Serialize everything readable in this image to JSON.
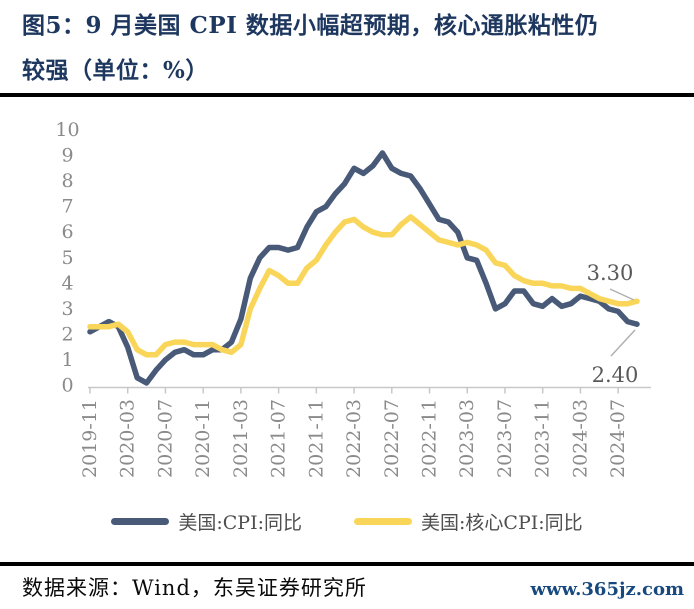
{
  "title": {
    "line1": "图5：9 月美国 CPI 数据小幅超预期，核心通胀粘性仍",
    "line2": "较强（单位：%）"
  },
  "footer": {
    "source": "数据来源：Wind，东吴证券研究所",
    "site": "www.365jz.com"
  },
  "colors": {
    "title_navy": "#1E375F",
    "cpi_line": "#485A78",
    "core_cpi_line": "#F9D65A",
    "axis_gray": "#C8C8C8",
    "label_gray": "#8A8A8A",
    "site_blue": "#17497F"
  },
  "chart_data": {
    "type": "line",
    "title": "图5：9 月美国 CPI 数据小幅超预期，核心通胀粘性仍较强（单位：%）",
    "xlabel": "",
    "ylabel": "",
    "ylim": [
      0,
      10
    ],
    "yticks": [
      0,
      1,
      2,
      3,
      4,
      5,
      6,
      7,
      8,
      9,
      10
    ],
    "xtick_every": 4,
    "grid": false,
    "legend_position": "bottom",
    "x": [
      "2019-11",
      "2019-12",
      "2020-01",
      "2020-02",
      "2020-03",
      "2020-04",
      "2020-05",
      "2020-06",
      "2020-07",
      "2020-08",
      "2020-09",
      "2020-10",
      "2020-11",
      "2020-12",
      "2021-01",
      "2021-02",
      "2021-03",
      "2021-04",
      "2021-05",
      "2021-06",
      "2021-07",
      "2021-08",
      "2021-09",
      "2021-10",
      "2021-11",
      "2021-12",
      "2022-01",
      "2022-02",
      "2022-03",
      "2022-04",
      "2022-05",
      "2022-06",
      "2022-07",
      "2022-08",
      "2022-09",
      "2022-10",
      "2022-11",
      "2022-12",
      "2023-01",
      "2023-02",
      "2023-03",
      "2023-04",
      "2023-05",
      "2023-06",
      "2023-07",
      "2023-08",
      "2023-09",
      "2023-10",
      "2023-11",
      "2023-12",
      "2024-01",
      "2024-02",
      "2024-03",
      "2024-04",
      "2024-05",
      "2024-06",
      "2024-07",
      "2024-08",
      "2024-09"
    ],
    "series": [
      {
        "key": "cpi",
        "name": "美国:CPI:同比",
        "color": "#485A78",
        "end_label": "2.40",
        "values": [
          2.1,
          2.3,
          2.5,
          2.3,
          1.5,
          0.3,
          0.1,
          0.6,
          1.0,
          1.3,
          1.4,
          1.2,
          1.2,
          1.4,
          1.4,
          1.7,
          2.6,
          4.2,
          5.0,
          5.4,
          5.4,
          5.3,
          5.4,
          6.2,
          6.8,
          7.0,
          7.5,
          7.9,
          8.5,
          8.3,
          8.6,
          9.1,
          8.5,
          8.3,
          8.2,
          7.7,
          7.1,
          6.5,
          6.4,
          6.0,
          5.0,
          4.9,
          4.0,
          3.0,
          3.2,
          3.7,
          3.7,
          3.2,
          3.1,
          3.4,
          3.1,
          3.2,
          3.5,
          3.4,
          3.3,
          3.0,
          2.9,
          2.5,
          2.4
        ]
      },
      {
        "key": "core-cpi",
        "name": "美国:核心CPI:同比",
        "color": "#F9D65A",
        "end_label": "3.30",
        "values": [
          2.3,
          2.3,
          2.3,
          2.4,
          2.1,
          1.4,
          1.2,
          1.2,
          1.6,
          1.7,
          1.7,
          1.6,
          1.6,
          1.6,
          1.4,
          1.3,
          1.6,
          3.0,
          3.8,
          4.5,
          4.3,
          4.0,
          4.0,
          4.6,
          4.9,
          5.5,
          6.0,
          6.4,
          6.5,
          6.2,
          6.0,
          5.9,
          5.9,
          6.3,
          6.6,
          6.3,
          6.0,
          5.7,
          5.6,
          5.5,
          5.6,
          5.5,
          5.3,
          4.8,
          4.7,
          4.3,
          4.1,
          4.0,
          4.0,
          3.9,
          3.9,
          3.8,
          3.8,
          3.6,
          3.4,
          3.3,
          3.2,
          3.2,
          3.3
        ]
      }
    ]
  }
}
